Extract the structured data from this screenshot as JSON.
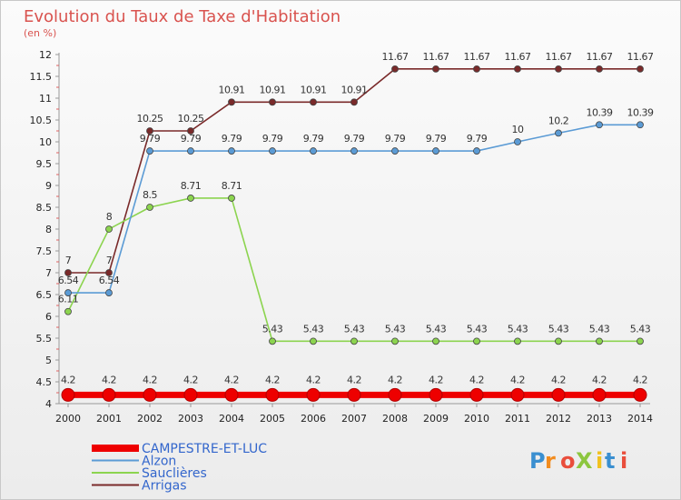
{
  "chart_data": {
    "type": "line",
    "title": "Evolution du Taux de Taxe d'Habitation",
    "subtitle": "(en %)",
    "xlabel": "",
    "ylabel": "",
    "categories": [
      "2000",
      "2001",
      "2002",
      "2003",
      "2004",
      "2005",
      "2006",
      "2007",
      "2008",
      "2009",
      "2010",
      "2011",
      "2012",
      "2013",
      "2014"
    ],
    "ylim": [
      4,
      12
    ],
    "yticks": [
      "4",
      "4.5",
      "5",
      "5.5",
      "6",
      "6.5",
      "7",
      "7.5",
      "8",
      "8.5",
      "9",
      "9.5",
      "10",
      "10.5",
      "11",
      "11.5",
      "12"
    ],
    "grid": false,
    "legend_position": "bottom-left",
    "series": [
      {
        "name": "CAMPESTRE-ET-LUC",
        "color": "#ee0000",
        "values": [
          4.2,
          4.2,
          4.2,
          4.2,
          4.2,
          4.2,
          4.2,
          4.2,
          4.2,
          4.2,
          4.2,
          4.2,
          4.2,
          4.2,
          4.2
        ],
        "labels": [
          "4.2",
          "4.2",
          "4.2",
          "4.2",
          "4.2",
          "4.2",
          "4.2",
          "4.2",
          "4.2",
          "4.2",
          "4.2",
          "4.2",
          "4.2",
          "4.2",
          "4.2"
        ]
      },
      {
        "name": "Alzon",
        "color": "#5b9bd5",
        "values": [
          6.54,
          6.54,
          9.79,
          9.79,
          9.79,
          9.79,
          9.79,
          9.79,
          9.79,
          9.79,
          9.79,
          10,
          10.2,
          10.39,
          10.39
        ],
        "labels": [
          "6.54",
          "6.54",
          "9.79",
          "9.79",
          "9.79",
          "9.79",
          "9.79",
          "9.79",
          "9.79",
          "9.79",
          "9.79",
          "10",
          "10.2",
          "10.39",
          "10.39"
        ]
      },
      {
        "name": "Sauclières",
        "color": "#8cd44f",
        "values": [
          6.11,
          8,
          8.5,
          8.71,
          8.71,
          5.43,
          5.43,
          5.43,
          5.43,
          5.43,
          5.43,
          5.43,
          5.43,
          5.43,
          5.43
        ],
        "labels": [
          "6.11",
          "8",
          "8.5",
          "8.71",
          "8.71",
          "5.43",
          "5.43",
          "5.43",
          "5.43",
          "5.43",
          "5.43",
          "5.43",
          "5.43",
          "5.43",
          "5.43"
        ]
      },
      {
        "name": "Arrigas",
        "color": "#7a2a2a",
        "values": [
          7,
          7,
          10.25,
          10.25,
          10.91,
          10.91,
          10.91,
          10.91,
          11.67,
          11.67,
          11.67,
          11.67,
          11.67,
          11.67,
          11.67
        ],
        "labels": [
          "7",
          "7",
          "10.25",
          "10.25",
          "10.91",
          "10.91",
          "10.91",
          "10.91",
          "11.67",
          "11.67",
          "11.67",
          "11.67",
          "11.67",
          "11.67",
          "11.67"
        ]
      }
    ]
  },
  "logo": {
    "text": "ProXiti"
  }
}
